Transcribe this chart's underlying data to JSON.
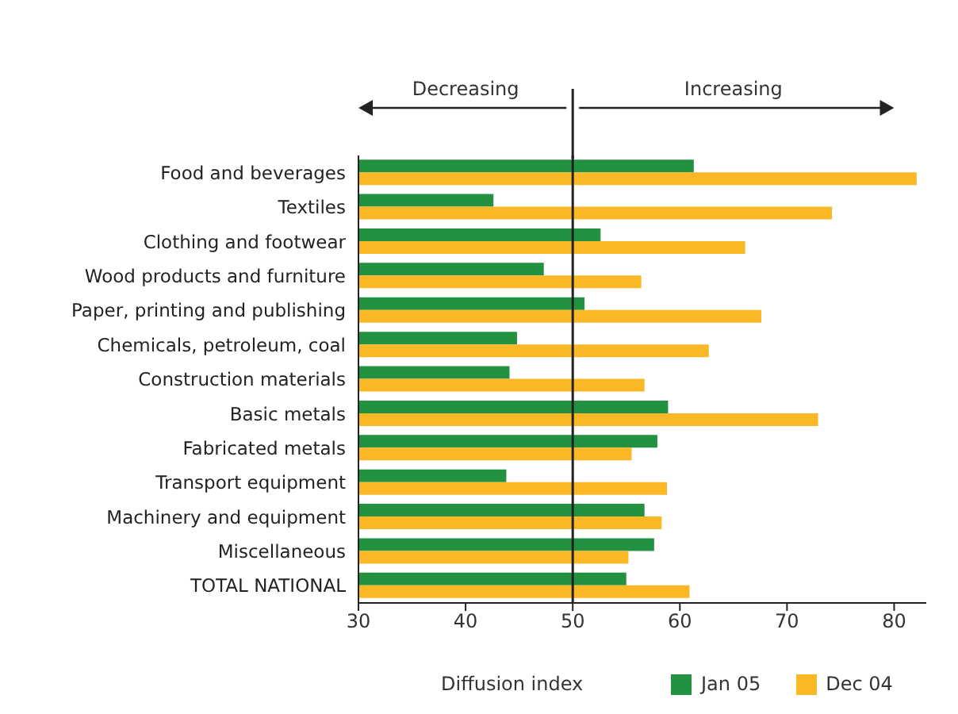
{
  "chart_data": {
    "type": "bar",
    "orientation": "horizontal",
    "xlabel": "Diffusion index",
    "categories": [
      "Food and beverages",
      "Textiles",
      "Clothing and footwear",
      "Wood products and furniture",
      "Paper, printing and publishing",
      "Chemicals, petroleum, coal",
      "Construction materials",
      "Basic metals",
      "Fabricated metals",
      "Transport equipment",
      "Machinery and equipment",
      "Miscellaneous",
      "TOTAL NATIONAL"
    ],
    "series": [
      {
        "name": "Jan 05",
        "color": "#229140",
        "values": [
          61.3,
          42.6,
          52.6,
          47.3,
          51.1,
          44.8,
          44.1,
          58.9,
          57.9,
          43.8,
          56.7,
          57.6,
          55.0
        ]
      },
      {
        "name": "Dec 04",
        "color": "#fbb826",
        "values": [
          82.1,
          74.2,
          66.1,
          56.4,
          67.6,
          62.7,
          56.7,
          72.9,
          55.5,
          58.8,
          58.3,
          55.2,
          60.9
        ]
      }
    ],
    "xlim": [
      30,
      83
    ],
    "xticks": [
      30,
      40,
      50,
      60,
      70,
      80
    ],
    "ref_lines": [
      {
        "axis": "x",
        "value": 50,
        "color": "#222222"
      }
    ],
    "annotations": [
      "Decreasing",
      "Increasing"
    ],
    "legend": "bottom",
    "grid": false
  }
}
